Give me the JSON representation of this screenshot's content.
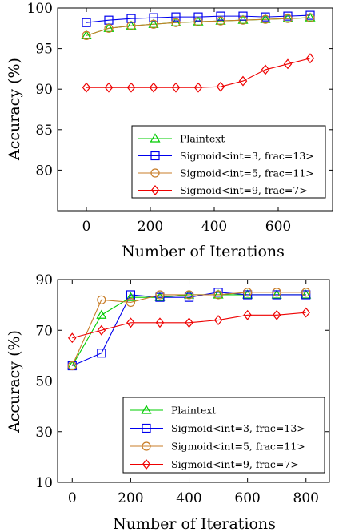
{
  "chart_data": [
    {
      "type": "line",
      "xlabel": "Number of Iterations",
      "ylabel": "Accuracy (%)",
      "xlim": [
        -90,
        770
      ],
      "ylim": [
        75,
        100
      ],
      "xticks": [
        0,
        200,
        400,
        600
      ],
      "yticks": [
        80,
        85,
        90,
        95,
        100
      ],
      "grid": false,
      "legend_position": "bottom-right",
      "x": [
        0,
        70,
        140,
        210,
        280,
        350,
        420,
        490,
        560,
        630,
        700
      ],
      "series": [
        {
          "name": "Plaintext",
          "color": "#00cc00",
          "marker": "triangle",
          "values": [
            96.6,
            97.5,
            97.8,
            98.0,
            98.2,
            98.3,
            98.4,
            98.5,
            98.6,
            98.7,
            98.8
          ]
        },
        {
          "name": "Sigmoid<int=3, frac=13>",
          "color": "#0000ee",
          "marker": "square",
          "values": [
            98.2,
            98.5,
            98.7,
            98.8,
            98.9,
            98.9,
            99.0,
            99.0,
            98.9,
            99.0,
            99.1
          ]
        },
        {
          "name": "Sigmoid<int=5, frac=11>",
          "color": "#c87d28",
          "marker": "circle",
          "values": [
            96.6,
            97.5,
            97.8,
            98.0,
            98.2,
            98.3,
            98.4,
            98.5,
            98.6,
            98.7,
            98.8
          ]
        },
        {
          "name": "Sigmoid<int=9, frac=7>",
          "color": "#ee0000",
          "marker": "diamond",
          "values": [
            90.2,
            90.2,
            90.2,
            90.2,
            90.2,
            90.2,
            90.3,
            91.0,
            92.4,
            93.1,
            93.8
          ]
        }
      ]
    },
    {
      "type": "line",
      "xlabel": "Number of Iterations",
      "ylabel": "Accuracy (%)",
      "xlim": [
        -50,
        880
      ],
      "ylim": [
        10,
        90
      ],
      "xticks": [
        0,
        200,
        400,
        600,
        800
      ],
      "yticks": [
        10,
        30,
        50,
        70,
        90
      ],
      "grid": false,
      "legend_position": "bottom-right",
      "x": [
        0,
        100,
        200,
        300,
        400,
        500,
        600,
        700,
        800
      ],
      "series": [
        {
          "name": "Plaintext",
          "color": "#00cc00",
          "marker": "triangle",
          "values": [
            56,
            76,
            83,
            83,
            84,
            84,
            84,
            84,
            84
          ]
        },
        {
          "name": "Sigmoid<int=3, frac=13>",
          "color": "#0000ee",
          "marker": "square",
          "values": [
            56,
            61,
            84,
            83,
            83,
            85,
            84,
            84,
            84
          ]
        },
        {
          "name": "Sigmoid<int=5, frac=11>",
          "color": "#c87d28",
          "marker": "circle",
          "values": [
            56,
            82,
            81,
            84,
            84,
            84,
            85,
            85,
            85
          ]
        },
        {
          "name": "Sigmoid<int=9, frac=7>",
          "color": "#ee0000",
          "marker": "diamond",
          "values": [
            67,
            70,
            73,
            73,
            73,
            74,
            76,
            76,
            77
          ]
        }
      ]
    }
  ]
}
